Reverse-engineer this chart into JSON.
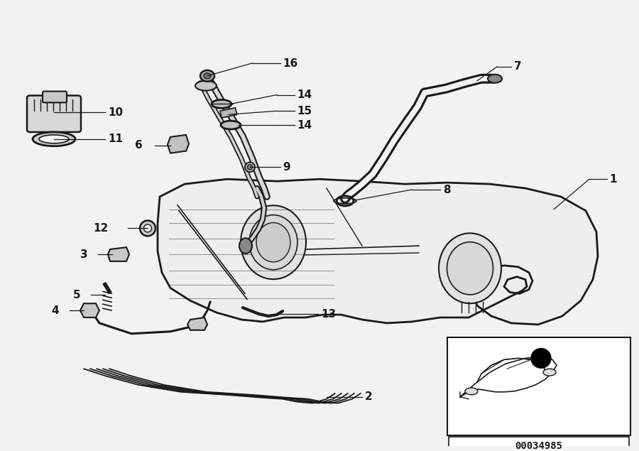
{
  "bg_color": "#f2f2f2",
  "line_color": "#1a1a1a",
  "diagram_id": "00034985",
  "fig_width": 9.0,
  "fig_height": 6.35,
  "dpi": 100
}
